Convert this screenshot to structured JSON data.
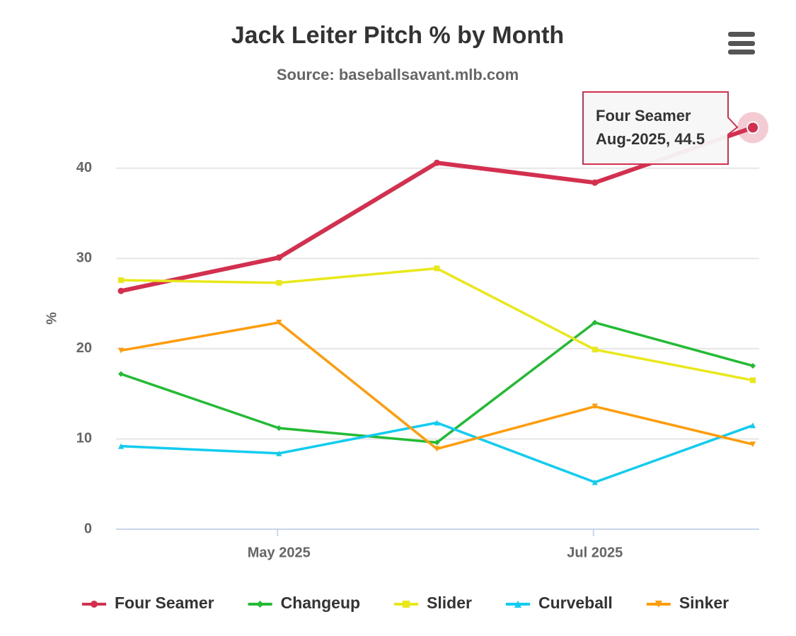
{
  "chart_data": {
    "type": "line",
    "title": "Jack Leiter Pitch % by Month",
    "subtitle": "Source: baseballsavant.mlb.com",
    "y_label": "%",
    "categories": [
      null,
      "May 2025",
      null,
      "Jul 2025",
      null
    ],
    "series": [
      {
        "name": "Four Seamer",
        "color": "#d3304f",
        "marker": "circle",
        "values": [
          26.4,
          30.1,
          40.6,
          38.4,
          44.5
        ]
      },
      {
        "name": "Changeup",
        "color": "#22bb33",
        "marker": "diamond",
        "values": [
          17.2,
          11.2,
          9.6,
          22.9,
          18.1
        ]
      },
      {
        "name": "Slider",
        "color": "#e8e81a",
        "marker": "square",
        "values": [
          27.6,
          27.3,
          28.9,
          19.9,
          16.5
        ]
      },
      {
        "name": "Curveball",
        "color": "#11ccee",
        "marker": "triangle",
        "values": [
          9.2,
          8.4,
          11.8,
          5.2,
          11.5
        ]
      },
      {
        "name": "Sinker",
        "color": "#ff9c0a",
        "marker": "triangle-down",
        "values": [
          19.8,
          22.9,
          8.9,
          13.6,
          9.4
        ]
      }
    ],
    "ylim": [
      0,
      45
    ],
    "yticks": [
      0,
      10,
      20,
      30,
      40
    ],
    "grid": true,
    "legend": "bottom",
    "tooltip": {
      "series": 0,
      "point": 4,
      "x": "Aug-2025"
    }
  }
}
